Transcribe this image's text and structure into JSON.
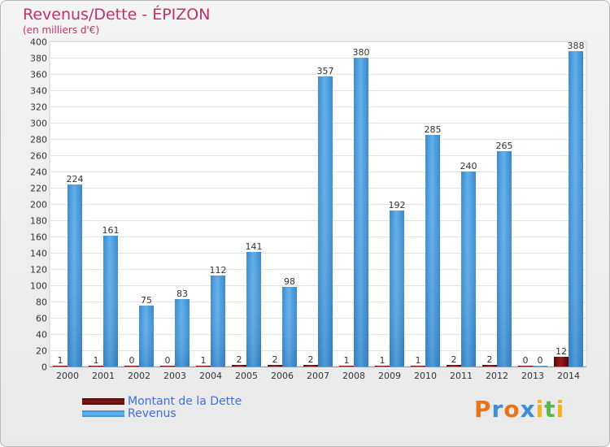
{
  "header": {
    "title": "Revenus/Dette - ÉPIZON",
    "subtitle": "(en milliers d'€)"
  },
  "chart_data": {
    "type": "bar",
    "title": "Revenus/Dette - ÉPIZON",
    "ylabel": "(en milliers d'€)",
    "xlabel": "",
    "ylim": [
      0,
      400
    ],
    "ytick_step": 20,
    "grid": true,
    "legend_position": "bottom-left",
    "categories": [
      "2000",
      "2001",
      "2002",
      "2003",
      "2004",
      "2005",
      "2006",
      "2007",
      "2008",
      "2009",
      "2010",
      "2011",
      "2012",
      "2013",
      "2014"
    ],
    "series": [
      {
        "name": "Montant de la Dette",
        "color": "#7a0a0a",
        "values": [
          1,
          1,
          0,
          0,
          1,
          2,
          2,
          2,
          1,
          1,
          1,
          2,
          2,
          0,
          12
        ]
      },
      {
        "name": "Revenus",
        "color": "#4b9fe0",
        "values": [
          224,
          161,
          75,
          83,
          112,
          141,
          98,
          357,
          380,
          192,
          285,
          240,
          265,
          0,
          388
        ]
      }
    ]
  },
  "legend": {
    "items": [
      {
        "label": "Montant de la Dette",
        "color": "#6b0c0c"
      },
      {
        "label": "Revenus",
        "color": "#4b9fe0"
      }
    ]
  },
  "logo": {
    "letters": [
      "P",
      "r",
      "o",
      "x",
      "i",
      "t",
      "i"
    ],
    "colors": [
      "#e8731a",
      "#3a8fd6",
      "#e8731a",
      "#3a8fd6",
      "#f2b21b",
      "#59b84a",
      "#f2b21b"
    ]
  }
}
